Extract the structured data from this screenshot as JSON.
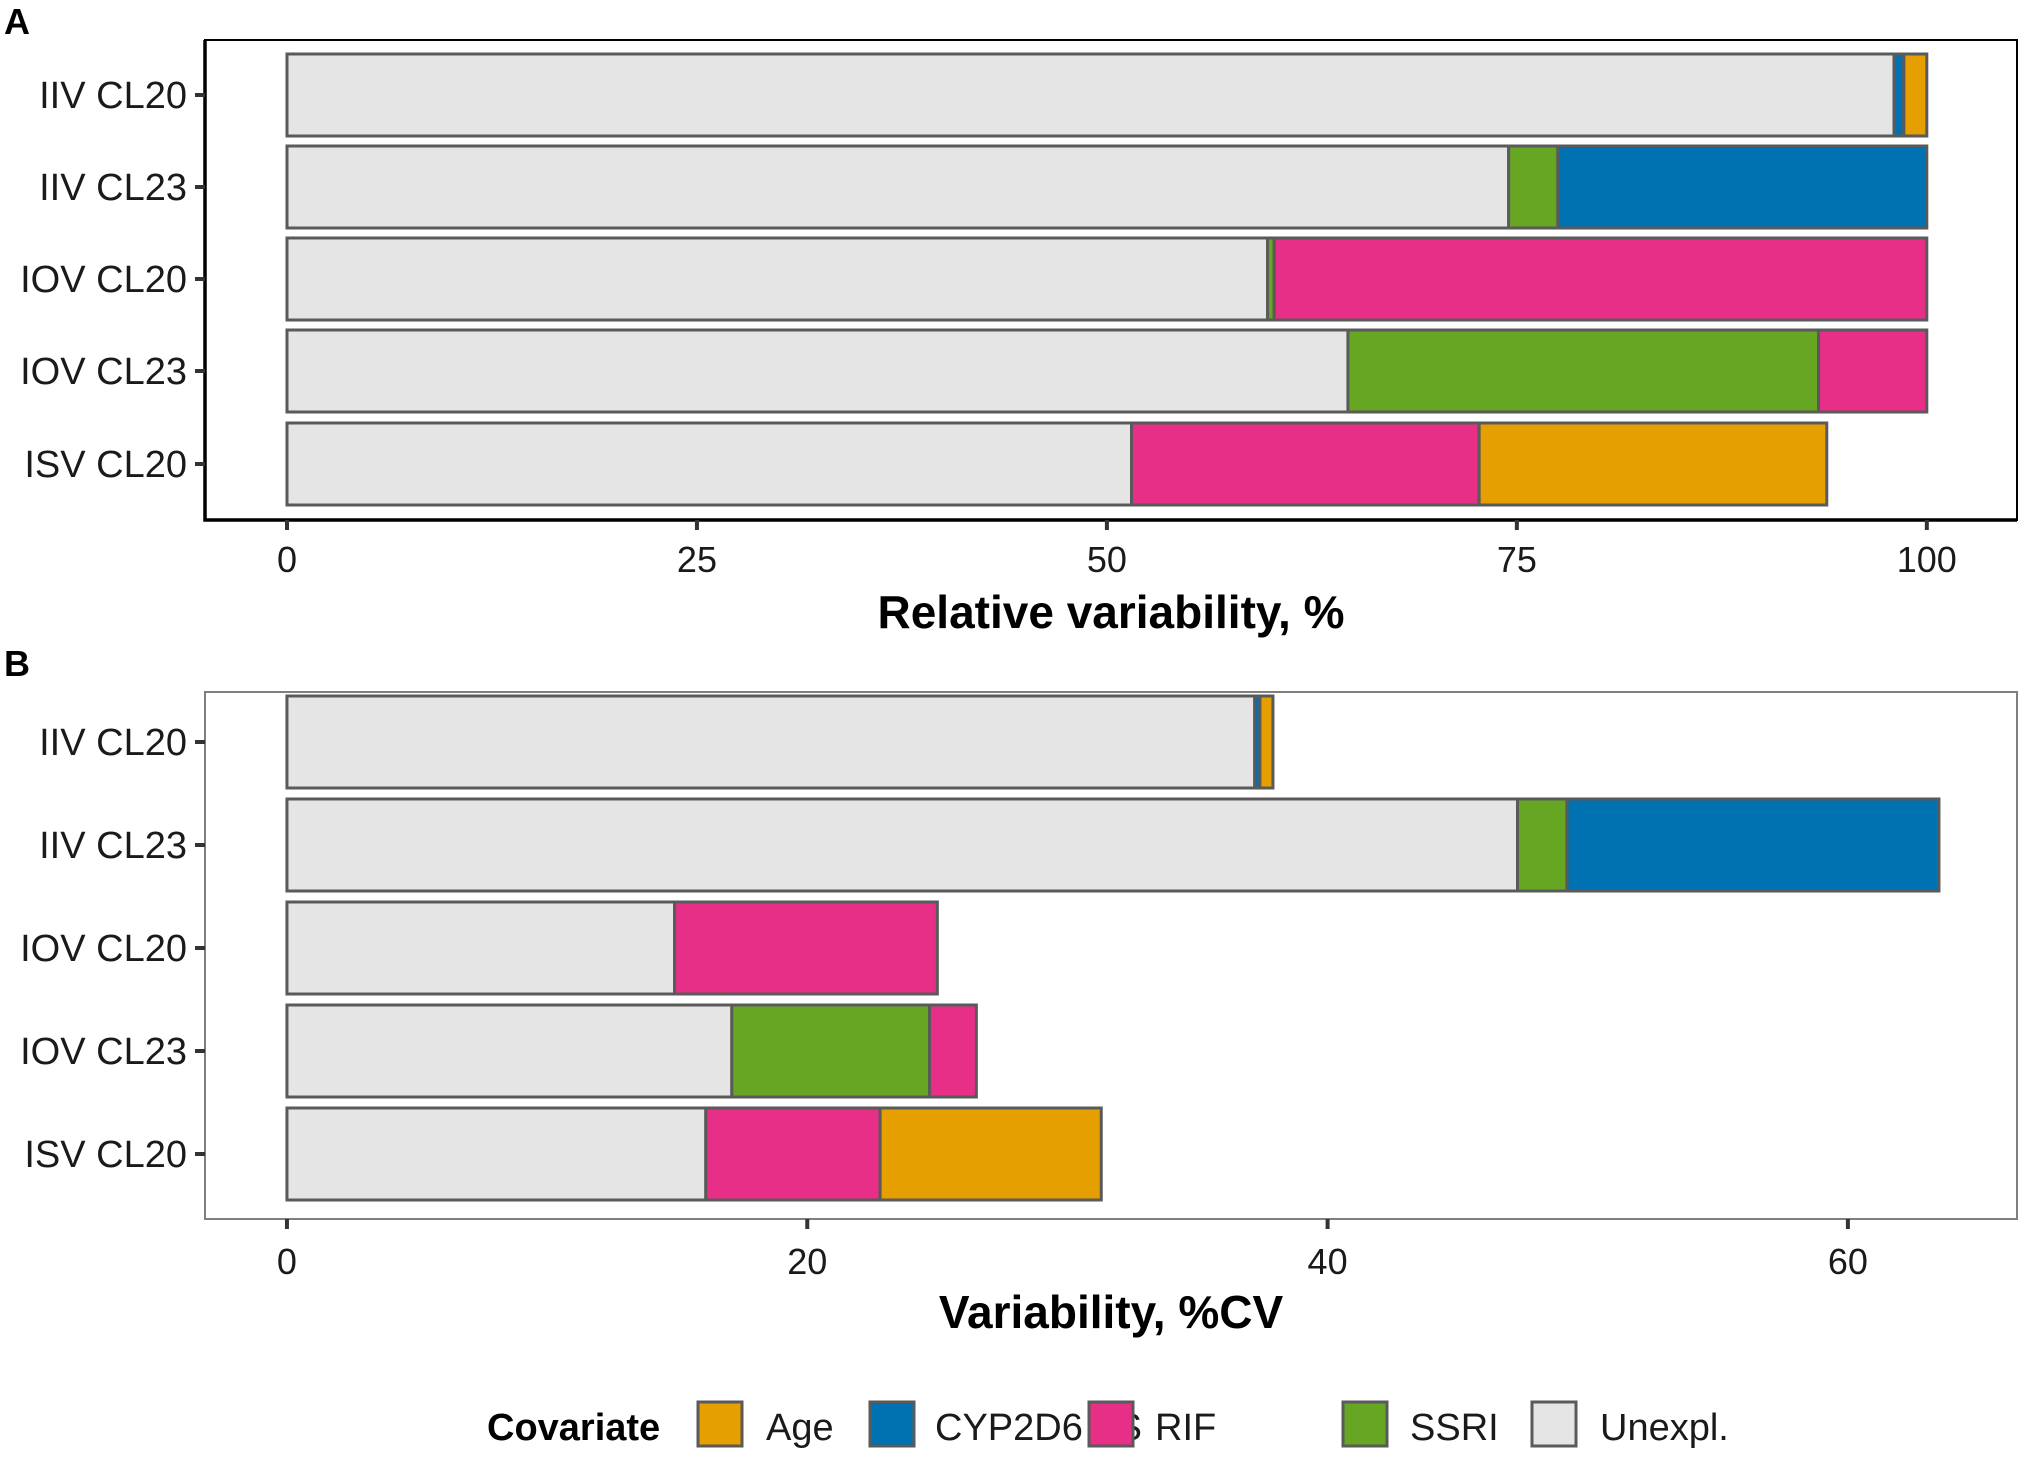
{
  "chart_data": [
    {
      "panel": "A",
      "type": "bar",
      "orientation": "horizontal",
      "stacked": true,
      "categories": [
        "IIV CL20",
        "IIV CL23",
        "IOV CL20",
        "IOV CL23",
        "ISV CL20"
      ],
      "series": [
        {
          "name": "Unexpl.",
          "values": [
            98.0,
            74.5,
            59.8,
            64.7,
            51.5
          ]
        },
        {
          "name": "CYP2D6 AS",
          "values": [
            0.6,
            22.5,
            0,
            0,
            0
          ]
        },
        {
          "name": "SSRI",
          "values": [
            0,
            3.0,
            0.4,
            28.7,
            0
          ]
        },
        {
          "name": "RIF",
          "values": [
            0,
            0,
            39.8,
            6.6,
            21.2
          ]
        },
        {
          "name": "Age",
          "values": [
            1.4,
            0,
            0,
            0,
            21.2
          ]
        }
      ],
      "stack_order": [
        "Unexpl.",
        "SSRI",
        "RIF",
        "CYP2D6 AS",
        "Age"
      ],
      "xlabel": "Relative variability, %",
      "ylabel": "",
      "xlim": [
        -5,
        105.5
      ],
      "xticks": [
        0,
        25,
        50,
        75,
        100
      ],
      "grid": false
    },
    {
      "panel": "B",
      "type": "bar",
      "orientation": "horizontal",
      "stacked": true,
      "categories": [
        "IIV CL20",
        "IIV CL23",
        "IOV CL20",
        "IOV CL23",
        "ISV CL20"
      ],
      "series": [
        {
          "name": "Unexpl.",
          "values": [
            37.2,
            47.3,
            14.9,
            17.1,
            16.1
          ]
        },
        {
          "name": "CYP2D6 AS",
          "values": [
            0.2,
            14.3,
            0,
            0,
            0
          ]
        },
        {
          "name": "SSRI",
          "values": [
            0,
            1.9,
            0,
            7.6,
            0
          ]
        },
        {
          "name": "RIF",
          "values": [
            0,
            0,
            10.1,
            1.8,
            6.7
          ]
        },
        {
          "name": "Age",
          "values": [
            0.5,
            0,
            0,
            0,
            8.5
          ]
        }
      ],
      "stack_order": [
        "Unexpl.",
        "SSRI",
        "RIF",
        "CYP2D6 AS",
        "Age"
      ],
      "xlabel": "Variability, %CV",
      "ylabel": "",
      "xlim": [
        -3.15,
        66.5
      ],
      "xticks": [
        0,
        20,
        40,
        60
      ],
      "grid": false
    }
  ],
  "legend": {
    "title": "Covariate",
    "items": [
      {
        "name": "Age",
        "color": "#E69F00"
      },
      {
        "name": "CYP2D6 AS",
        "color": "#0072B2"
      },
      {
        "name": "RIF",
        "color": "#E72F87"
      },
      {
        "name": "SSRI",
        "color": "#67A623"
      },
      {
        "name": "Unexpl.",
        "color": "#E5E5E5"
      }
    ]
  },
  "colors": {
    "Unexpl.": "#E5E5E5",
    "SSRI": "#67A623",
    "RIF": "#E72F87",
    "CYP2D6 AS": "#0072B2",
    "Age": "#E69F00",
    "bar_outline": "#5a5a5a",
    "panel_border": "#7f7f7f"
  }
}
